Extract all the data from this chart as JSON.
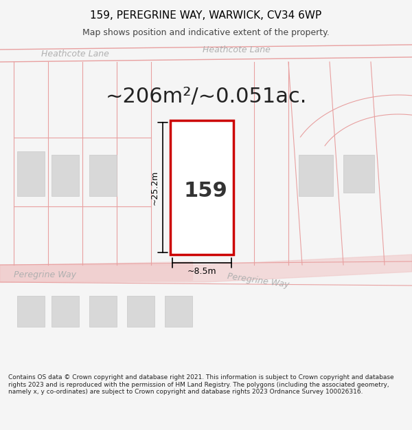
{
  "title_line1": "159, PEREGRINE WAY, WARWICK, CV34 6WP",
  "title_line2": "Map shows position and indicative extent of the property.",
  "area_text": "~206m²/~0.051ac.",
  "plot_number": "159",
  "dim_width": "~8.5m",
  "dim_height": "~25.2m",
  "footer_text": "Contains OS data © Crown copyright and database right 2021. This information is subject to Crown copyright and database rights 2023 and is reproduced with the permission of HM Land Registry. The polygons (including the associated geometry, namely x, y co-ordinates) are subject to Crown copyright and database rights 2023 Ordnance Survey 100026316.",
  "bg_color": "#f5f5f5",
  "map_bg": "#ffffff",
  "plot_fill": "#ffffff",
  "plot_edge": "#cc0000",
  "road_color": "#f0c8c8",
  "building_fill": "#d8d8d8",
  "building_edge": "#c8c8c8",
  "road_line_color": "#e8a0a0",
  "label_color": "#b0b0b0",
  "dim_color": "#000000",
  "title_color": "#000000",
  "area_color": "#222222"
}
